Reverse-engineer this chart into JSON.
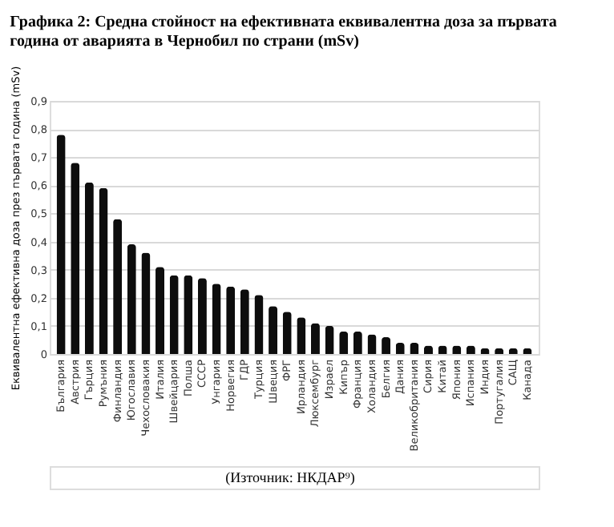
{
  "chart_data": {
    "type": "bar",
    "title": "Графика 2: Средна стойност на ефективната еквивалентна доза за първата година от аварията в Чернобил по страни (mSv)",
    "ylabel": "Еквивалентна ефективна доза през първата година (mSv)",
    "categories": [
      "България",
      "Австрия",
      "Гърция",
      "Румъния",
      "Финландия",
      "Югославия",
      "Чехословакия",
      "Италия",
      "Швейцария",
      "Полша",
      "СССР",
      "Унгария",
      "Норвегия",
      "ГДР",
      "Турция",
      "Швеция",
      "ФРГ",
      "Ирландия",
      "Люксембург",
      "Израел",
      "Кипър",
      "Франция",
      "Холандия",
      "Белгия",
      "Дания",
      "Великобритания",
      "Сирия",
      "Китай",
      "Япония",
      "Испания",
      "Индия",
      "Португалия",
      "САЩ",
      "Канада"
    ],
    "values": [
      0.78,
      0.68,
      0.61,
      0.59,
      0.48,
      0.39,
      0.36,
      0.31,
      0.28,
      0.28,
      0.27,
      0.25,
      0.24,
      0.23,
      0.21,
      0.17,
      0.15,
      0.13,
      0.11,
      0.1,
      0.08,
      0.08,
      0.07,
      0.06,
      0.04,
      0.04,
      0.03,
      0.03,
      0.03,
      0.03,
      0.02,
      0.02,
      0.02,
      0.02
    ],
    "color": "#0d0d0d",
    "ylim": [
      0,
      0.9
    ],
    "yticks": [
      0,
      {
        "value": 0.1,
        "label": "0,1"
      },
      {
        "value": 0.2,
        "label": "0,2"
      },
      {
        "value": 0.3,
        "label": "0,3"
      },
      {
        "value": 0.4,
        "label": "0,4"
      },
      {
        "value": 0.5,
        "label": "0,5"
      },
      {
        "value": 0.6,
        "label": "0,6"
      },
      {
        "value": 0.7,
        "label": "0,7"
      },
      {
        "value": 0.8,
        "label": "0,8"
      },
      {
        "value": 0.9,
        "label": "0,9"
      }
    ],
    "grid": "y",
    "annotations": [
      "(Източник: НКДАР⁹)"
    ]
  }
}
